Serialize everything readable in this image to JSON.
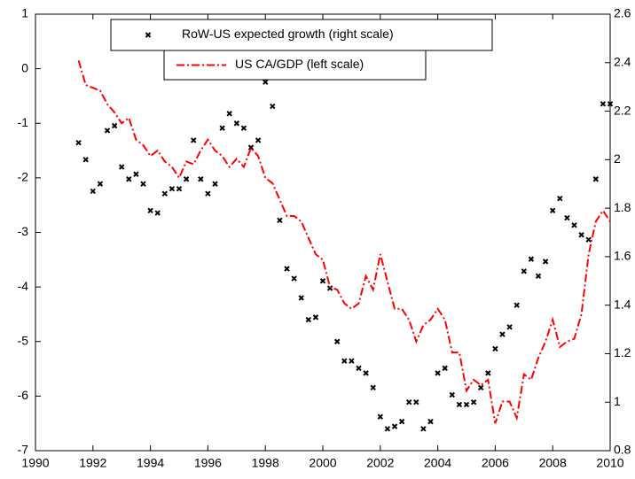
{
  "chart_data": {
    "type": "line",
    "x": [
      1991.5,
      1991.75,
      1992,
      1992.25,
      1992.5,
      1992.75,
      1993,
      1993.25,
      1993.5,
      1993.75,
      1994,
      1994.25,
      1994.5,
      1994.75,
      1995,
      1995.25,
      1995.5,
      1995.75,
      1996,
      1996.25,
      1996.5,
      1996.75,
      1997,
      1997.25,
      1997.5,
      1997.75,
      1998,
      1998.25,
      1998.5,
      1998.75,
      1999,
      1999.25,
      1999.5,
      1999.75,
      2000,
      2000.25,
      2000.5,
      2000.75,
      2001,
      2001.25,
      2001.5,
      2001.75,
      2002,
      2002.25,
      2002.5,
      2002.75,
      2003,
      2003.25,
      2003.5,
      2003.75,
      2004,
      2004.25,
      2004.5,
      2004.75,
      2005,
      2005.25,
      2005.5,
      2005.75,
      2006,
      2006.25,
      2006.5,
      2006.75,
      2007,
      2007.25,
      2007.5,
      2007.75,
      2008,
      2008.25,
      2008.5,
      2008.75,
      2009,
      2009.25,
      2009.5,
      2009.75,
      2010
    ],
    "series": [
      {
        "name": "RoW-US expected growth (right scale)",
        "type": "scatter",
        "axis": "y2",
        "color": "#000000",
        "values": [
          2.07,
          2.0,
          1.87,
          1.9,
          2.12,
          2.14,
          1.97,
          1.92,
          1.94,
          1.9,
          1.79,
          1.78,
          1.86,
          1.88,
          1.88,
          1.92,
          2.08,
          1.92,
          1.86,
          1.9,
          2.13,
          2.19,
          2.15,
          2.13,
          2.05,
          2.08,
          2.32,
          2.22,
          1.75,
          1.55,
          1.51,
          1.43,
          1.34,
          1.35,
          1.5,
          1.47,
          1.25,
          1.17,
          1.17,
          1.14,
          1.12,
          1.06,
          0.94,
          0.89,
          0.9,
          0.92,
          1.0,
          1.0,
          0.89,
          0.92,
          1.12,
          1.14,
          1.03,
          0.99,
          0.99,
          1.0,
          1.06,
          1.12,
          1.22,
          1.28,
          1.31,
          1.4,
          1.54,
          1.59,
          1.52,
          1.58,
          1.79,
          1.84,
          1.76,
          1.73,
          1.69,
          1.67,
          1.92,
          2.23,
          2.23
        ]
      },
      {
        "name": "US CA/GDP (left scale)",
        "type": "line",
        "color": "#ff0000",
        "values": [
          0.15,
          -0.3,
          -0.35,
          -0.4,
          -0.65,
          -0.8,
          -1.0,
          -0.9,
          -1.3,
          -1.4,
          -1.6,
          -1.5,
          -1.7,
          -1.8,
          -2.0,
          -1.7,
          -1.75,
          -1.5,
          -1.3,
          -1.5,
          -1.6,
          -1.8,
          -1.65,
          -1.8,
          -1.45,
          -1.6,
          -2.0,
          -2.1,
          -2.4,
          -2.7,
          -2.7,
          -2.8,
          -3.1,
          -3.4,
          -3.5,
          -4.0,
          -4.05,
          -4.3,
          -4.4,
          -4.3,
          -3.8,
          -4.05,
          -3.4,
          -3.9,
          -4.4,
          -4.4,
          -4.6,
          -5.0,
          -4.7,
          -4.6,
          -4.4,
          -4.6,
          -5.2,
          -5.2,
          -5.9,
          -5.7,
          -5.8,
          -5.7,
          -6.5,
          -6.1,
          -6.1,
          -6.4,
          -5.6,
          -5.7,
          -5.3,
          -5.0,
          -4.6,
          -5.1,
          -5.0,
          -4.95,
          -4.5,
          -3.4,
          -2.8,
          -2.6,
          -2.8
        ]
      }
    ],
    "xlim": [
      1990,
      2010
    ],
    "xticks": [
      1990,
      1992,
      1994,
      1996,
      1998,
      2000,
      2002,
      2004,
      2006,
      2008,
      2010
    ],
    "ylim": [
      -7,
      1
    ],
    "yticks": [
      -7,
      -6,
      -5,
      -4,
      -3,
      -2,
      -1,
      0,
      1
    ],
    "y2lim": [
      0.8,
      2.6
    ],
    "y2ticks": [
      0.8,
      1,
      1.2,
      1.4,
      1.6,
      1.8,
      2,
      2.2,
      2.4,
      2.6
    ],
    "grid": false
  }
}
